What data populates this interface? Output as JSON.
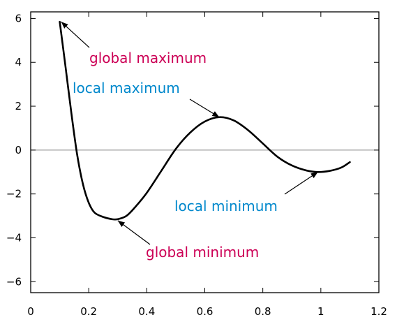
{
  "chart_data": {
    "type": "line",
    "xlim": [
      0,
      1.2
    ],
    "ylim": [
      -6.5,
      6.3
    ],
    "x_ticks": [
      0,
      0.2,
      0.4,
      0.6,
      0.8,
      1,
      1.2
    ],
    "x_tick_labels": [
      "0",
      "0.2",
      "0.4",
      "0.6",
      "0.8",
      "1",
      "1.2"
    ],
    "y_ticks": [
      -6,
      -4,
      -2,
      0,
      2,
      4,
      6
    ],
    "y_tick_labels": [
      "−6",
      "−4",
      "−2",
      "0",
      "2",
      "4",
      "6"
    ],
    "grid": false,
    "zero_line": true,
    "series": [
      {
        "color": "#000000",
        "points": [
          [
            0.1,
            5.85
          ],
          [
            0.12,
            3.8
          ],
          [
            0.14,
            1.7
          ],
          [
            0.16,
            -0.2
          ],
          [
            0.18,
            -1.55
          ],
          [
            0.2,
            -2.4
          ],
          [
            0.22,
            -2.85
          ],
          [
            0.25,
            -3.05
          ],
          [
            0.28,
            -3.15
          ],
          [
            0.3,
            -3.15
          ],
          [
            0.33,
            -3.0
          ],
          [
            0.36,
            -2.6
          ],
          [
            0.4,
            -1.95
          ],
          [
            0.45,
            -0.95
          ],
          [
            0.5,
            0.05
          ],
          [
            0.55,
            0.8
          ],
          [
            0.6,
            1.3
          ],
          [
            0.65,
            1.5
          ],
          [
            0.7,
            1.35
          ],
          [
            0.75,
            0.9
          ],
          [
            0.8,
            0.3
          ],
          [
            0.85,
            -0.3
          ],
          [
            0.9,
            -0.7
          ],
          [
            0.95,
            -0.93
          ],
          [
            0.99,
            -1.0
          ],
          [
            1.03,
            -0.95
          ],
          [
            1.07,
            -0.8
          ],
          [
            1.1,
            -0.55
          ]
        ]
      }
    ],
    "annotations": [
      {
        "text": "global maximum",
        "color": "#cc0055",
        "point": [
          0.1,
          5.85
        ]
      },
      {
        "text": "local maximum",
        "color": "#0088cc",
        "point": [
          0.65,
          1.5
        ]
      },
      {
        "text": "local minimum",
        "color": "#0088cc",
        "point": [
          0.99,
          -1.0
        ]
      },
      {
        "text": "global minimum",
        "color": "#cc0055",
        "point": [
          0.3,
          -3.15
        ]
      }
    ]
  }
}
